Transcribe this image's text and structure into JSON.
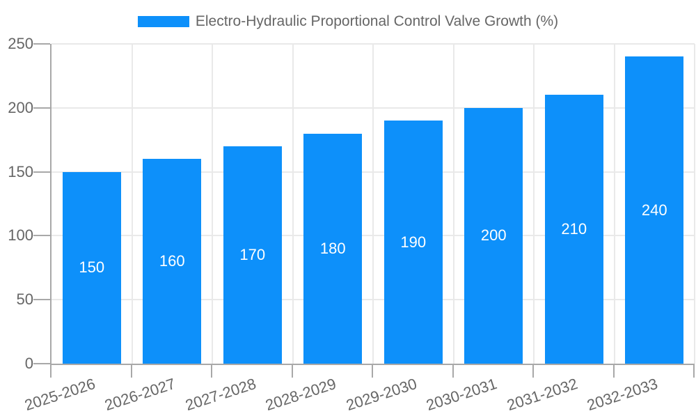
{
  "chart_data": {
    "type": "bar",
    "title": "Electro-Hydraulic Proportional Control Valve Growth (%)",
    "categories": [
      "2025-2026",
      "2026-2027",
      "2027-2028",
      "2028-2029",
      "2029-2030",
      "2030-2031",
      "2031-2032",
      "2032-2033"
    ],
    "values": [
      150,
      160,
      170,
      180,
      190,
      200,
      210,
      240
    ],
    "xlabel": "",
    "ylabel": "",
    "ylim": [
      0,
      250
    ],
    "yticks": [
      0,
      50,
      100,
      150,
      200,
      250
    ],
    "grid": true,
    "legend_position": "top-center",
    "bar_value_labels": true
  },
  "colors": {
    "bar": "#0D90FA",
    "grid": "#E9E9E9",
    "axis": "#A8A8A8",
    "tick_label_text": "#666666",
    "legend_text": "#666666",
    "bar_value_text": "#FFFFFF",
    "background": "#FFFFFF"
  }
}
